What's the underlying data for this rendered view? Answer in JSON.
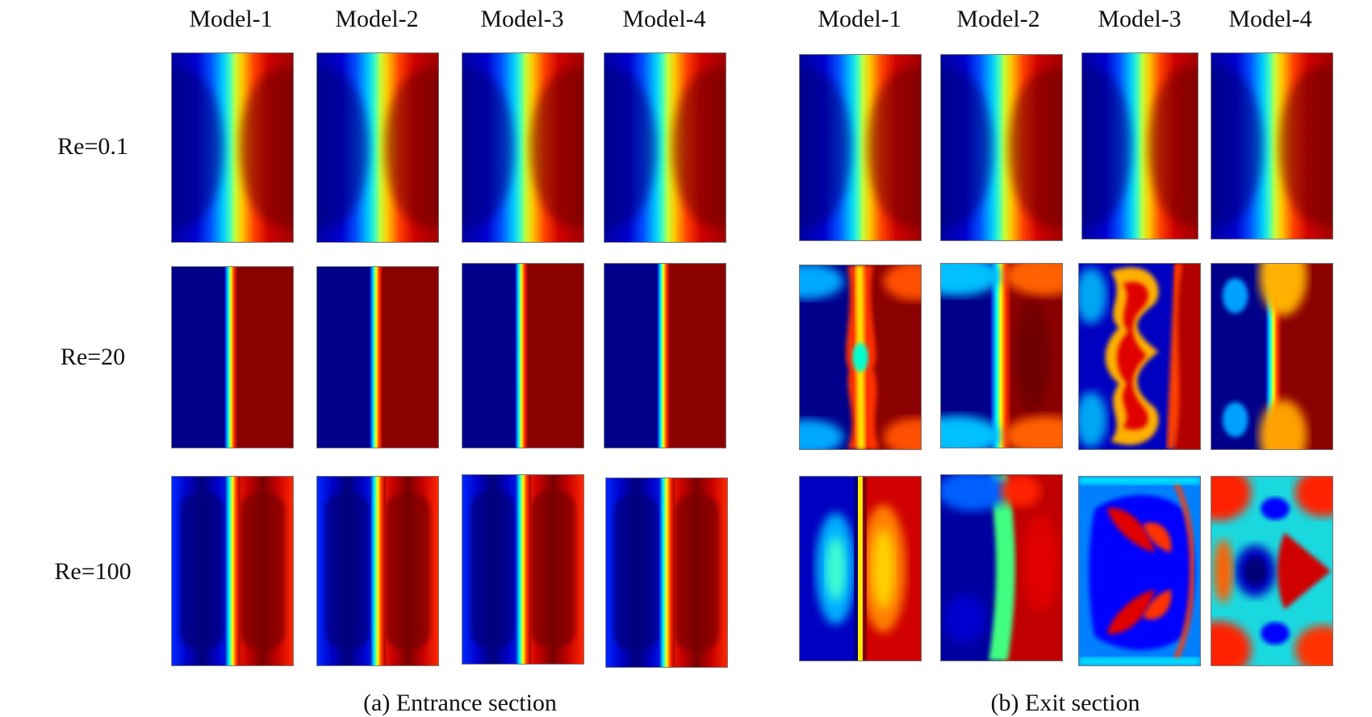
{
  "columns": {
    "entrance": [
      "Model-1",
      "Model-2",
      "Model-3",
      "Model-4"
    ],
    "exit": [
      "Model-1",
      "Model-2",
      "Model-3",
      "Model-4"
    ]
  },
  "rows": [
    "Re=0.1",
    "Re=20",
    "Re=100"
  ],
  "captions": {
    "entrance": "(a) Entrance section",
    "exit": "(b) Exit section"
  },
  "colormap": "jet",
  "colors": {
    "low": "#00008b",
    "mid": "#00e5c0",
    "high": "#8b0000"
  }
}
